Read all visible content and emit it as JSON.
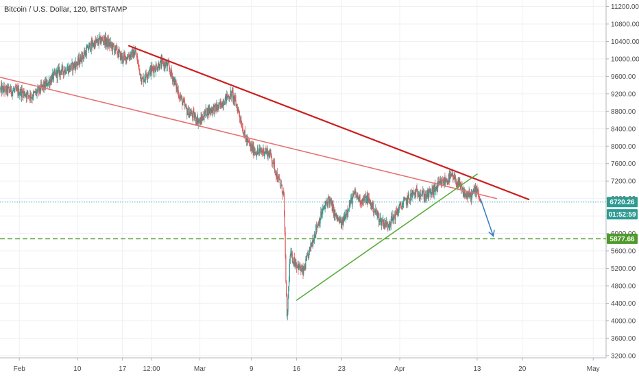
{
  "chart_data": {
    "type": "candlestick",
    "title": "Bitcoin / U.S. Dollar, 120, BITSTAMP",
    "y_ticks": [
      3200,
      3600,
      4000,
      4400,
      4800,
      5200,
      5600,
      6000,
      6400,
      6800,
      7200,
      7600,
      8000,
      8400,
      8800,
      9200,
      9600,
      10000,
      10400,
      10800,
      11200
    ],
    "y_tick_labels": [
      "3200.00",
      "3600.00",
      "4000.00",
      "4400.00",
      "4800.00",
      "5200.00",
      "5600.00",
      "6000.00",
      "6400.00",
      "6800.00",
      "7200.00",
      "7600.00",
      "8000.00",
      "8400.00",
      "8800.00",
      "9200.00",
      "9600.00",
      "10000.00",
      "10400.00",
      "10800.00",
      "11200.00"
    ],
    "ylim": [
      3150,
      11350
    ],
    "x_ticks": [
      {
        "label": "Feb",
        "date": "2018-02-01"
      },
      {
        "label": "10",
        "date": "2018-02-10"
      },
      {
        "label": "17",
        "date": "2018-02-17"
      },
      {
        "label": "12:00",
        "date": "2018-02-21T12:00"
      },
      {
        "label": "Mar",
        "date": "2018-03-01"
      },
      {
        "label": "9",
        "date": "2018-03-09"
      },
      {
        "label": "16",
        "date": "2018-03-16"
      },
      {
        "label": "23",
        "date": "2018-03-23"
      },
      {
        "label": "Apr",
        "date": "2018-04-01"
      },
      {
        "label": "13",
        "date": "2018-04-13"
      },
      {
        "label": "20",
        "date": "2018-04-20"
      },
      {
        "label": "May",
        "date": "2018-05-01"
      }
    ],
    "xlim": [
      "2018-01-29",
      "2018-05-03"
    ],
    "price_path": [
      [
        "2018-01-29",
        9300
      ],
      [
        "2018-02-01",
        9250
      ],
      [
        "2018-02-03",
        9150
      ],
      [
        "2018-02-05",
        9400
      ],
      [
        "2018-02-07",
        9700
      ],
      [
        "2018-02-09",
        9800
      ],
      [
        "2018-02-10",
        9900
      ],
      [
        "2018-02-12",
        10300
      ],
      [
        "2018-02-14",
        10450
      ],
      [
        "2018-02-16",
        10200
      ],
      [
        "2018-02-17",
        10000
      ],
      [
        "2018-02-19",
        10150
      ],
      [
        "2018-02-20",
        9500
      ],
      [
        "2018-02-21",
        9700
      ],
      [
        "2018-02-23",
        9900
      ],
      [
        "2018-02-24",
        9850
      ],
      [
        "2018-02-25",
        9500
      ],
      [
        "2018-02-26",
        9100
      ],
      [
        "2018-02-27",
        8800
      ],
      [
        "2018-02-28",
        8700
      ],
      [
        "2018-03-01",
        8550
      ],
      [
        "2018-03-02",
        8800
      ],
      [
        "2018-03-04",
        8900
      ],
      [
        "2018-03-05",
        9100
      ],
      [
        "2018-03-06",
        9200
      ],
      [
        "2018-03-07",
        8800
      ],
      [
        "2018-03-08",
        8200
      ],
      [
        "2018-03-09",
        7950
      ],
      [
        "2018-03-10",
        7850
      ],
      [
        "2018-03-11",
        7900
      ],
      [
        "2018-03-12",
        7800
      ],
      [
        "2018-03-13",
        7300
      ],
      [
        "2018-03-14",
        6900
      ],
      [
        "2018-03-14T12:00",
        4000
      ],
      [
        "2018-03-15",
        5500
      ],
      [
        "2018-03-16",
        5300
      ],
      [
        "2018-03-17",
        5100
      ],
      [
        "2018-03-18",
        5600
      ],
      [
        "2018-03-19",
        6100
      ],
      [
        "2018-03-20",
        6500
      ],
      [
        "2018-03-21",
        6800
      ],
      [
        "2018-03-22",
        6400
      ],
      [
        "2018-03-23",
        6200
      ],
      [
        "2018-03-24",
        6600
      ],
      [
        "2018-03-25",
        6900
      ],
      [
        "2018-03-26",
        6750
      ],
      [
        "2018-03-27",
        6800
      ],
      [
        "2018-03-28",
        6550
      ],
      [
        "2018-03-29",
        6300
      ],
      [
        "2018-03-30",
        6200
      ],
      [
        "2018-03-31",
        6350
      ],
      [
        "2018-04-01",
        6600
      ],
      [
        "2018-04-02",
        6750
      ],
      [
        "2018-04-03",
        6900
      ],
      [
        "2018-04-04",
        6950
      ],
      [
        "2018-04-05",
        6850
      ],
      [
        "2018-04-06",
        6950
      ],
      [
        "2018-04-07",
        7100
      ],
      [
        "2018-04-08",
        7200
      ],
      [
        "2018-04-09",
        7300
      ],
      [
        "2018-04-10",
        7150
      ],
      [
        "2018-04-11",
        6900
      ],
      [
        "2018-04-12",
        6850
      ],
      [
        "2018-04-13",
        7050
      ],
      [
        "2018-04-13T12:00",
        6720
      ]
    ],
    "trendlines": [
      {
        "color": "#cc1e1e",
        "width": 2.2,
        "from": [
          "2018-02-18",
          10300
        ],
        "to": [
          "2018-04-21",
          6780
        ]
      },
      {
        "color": "#e57373",
        "width": 1.6,
        "from": [
          "2018-01-29",
          9580
        ],
        "to": [
          "2018-04-16",
          6800
        ]
      },
      {
        "color": "#5aad3c",
        "width": 1.6,
        "from": [
          "2018-03-16",
          4470
        ],
        "to": [
          "2018-04-13",
          7360
        ]
      }
    ],
    "arrow": {
      "color": "#3d7fc4",
      "from": [
        "2018-04-13T12:00",
        6800
      ],
      "to": [
        "2018-04-15T12:00",
        5940
      ]
    },
    "horizontal_lines": [
      {
        "value": 5877.66,
        "color": "#4e9a2a",
        "style": "dashed",
        "width": 1.5
      },
      {
        "value": 6720.26,
        "color": "#3aa0a8",
        "style": "dotted",
        "width": 1
      }
    ],
    "price_badges": [
      {
        "label": "6720.26",
        "value": 6720.26,
        "color": "#2e9b92"
      },
      {
        "label": "01:52:59",
        "value": 6440,
        "color": "#2e9b92"
      },
      {
        "label": "5877.66",
        "value": 5877.66,
        "color": "#4e9a2a"
      }
    ],
    "colors": {
      "up": "#2e9b92",
      "down": "#e05c5c",
      "grid": "#eef0f4",
      "axis": "#b0b4ba"
    },
    "grid": true
  }
}
